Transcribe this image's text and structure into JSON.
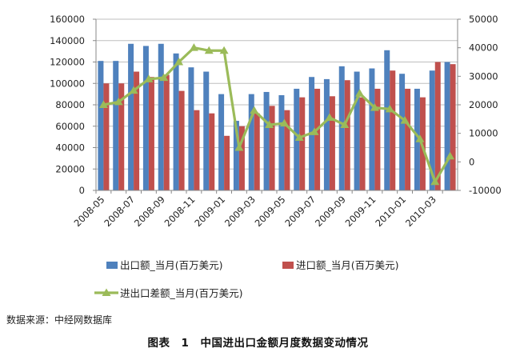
{
  "source_note": "数据来源：中经网数据库",
  "figure_caption": "图表　1　中国进出口金额月度数据变动情况",
  "chart_data": {
    "type": "bar",
    "categories": [
      "2008-05",
      "2008-06",
      "2008-07",
      "2008-08",
      "2008-09",
      "2008-10",
      "2008-11",
      "2008-12",
      "2009-01",
      "2009-02",
      "2009-03",
      "2009-04",
      "2009-05",
      "2009-06",
      "2009-07",
      "2009-08",
      "2009-09",
      "2009-10",
      "2009-11",
      "2009-12",
      "2010-01",
      "2010-02",
      "2010-03",
      "2010-04"
    ],
    "x_tick_labels": [
      "2008-05",
      "2008-07",
      "2008-09",
      "2008-11",
      "2009-01",
      "2009-03",
      "2009-05",
      "2009-07",
      "2009-09",
      "2009-11",
      "2010-01",
      "2010-03"
    ],
    "series": [
      {
        "name": "出口额_当月(百万美元)",
        "type": "bar",
        "axis": "left",
        "color": "#4f81bd",
        "values": [
          121000,
          121000,
          137000,
          135000,
          137000,
          128000,
          115000,
          111000,
          90000,
          65000,
          90000,
          92000,
          89000,
          95000,
          106000,
          104000,
          116000,
          111000,
          114000,
          131000,
          109000,
          95000,
          112000,
          120000
        ]
      },
      {
        "name": "进口额_当月(百万美元)",
        "type": "bar",
        "axis": "left",
        "color": "#c0504d",
        "values": [
          100000,
          100000,
          111000,
          106000,
          108000,
          93000,
          75000,
          72000,
          51000,
          60000,
          72000,
          79000,
          75000,
          87000,
          95000,
          88000,
          103000,
          87000,
          95000,
          112000,
          95000,
          87000,
          120000,
          118000
        ]
      },
      {
        "name": "进出口差额_当月(百万美元)",
        "type": "line",
        "axis": "right",
        "color": "#9bbb59",
        "values": [
          20000,
          21000,
          25000,
          29000,
          29500,
          35000,
          40000,
          39000,
          39000,
          5000,
          18000,
          13000,
          13500,
          8500,
          10500,
          15500,
          13000,
          24000,
          19000,
          18500,
          14500,
          8000,
          -7000,
          2000
        ]
      }
    ],
    "y_left": {
      "min": 0,
      "max": 160000,
      "ticks": [
        0,
        20000,
        40000,
        60000,
        80000,
        100000,
        120000,
        140000,
        160000
      ]
    },
    "y_right": {
      "min": -10000,
      "max": 50000,
      "ticks": [
        -10000,
        0,
        10000,
        20000,
        30000,
        40000,
        50000
      ]
    },
    "legend_position": "bottom"
  }
}
